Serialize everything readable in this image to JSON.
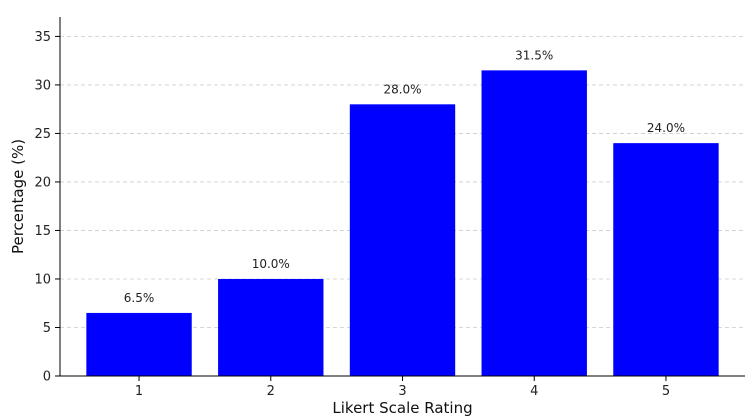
{
  "chart_data": {
    "type": "bar",
    "title": "",
    "xlabel": "Likert Scale Rating",
    "ylabel": "Percentage (%)",
    "categories": [
      "1",
      "2",
      "3",
      "4",
      "5"
    ],
    "values": [
      6.5,
      10.0,
      28.0,
      31.5,
      24.0
    ],
    "data_labels": [
      "6.5%",
      "10.0%",
      "28.0%",
      "31.5%",
      "24.0%"
    ],
    "ylim": [
      0,
      37
    ],
    "yticks": [
      0,
      5,
      10,
      15,
      20,
      25,
      30,
      35
    ],
    "grid": "y-dashed",
    "legend": "none",
    "bar_color": "#0000ff",
    "grid_color": "#cccccc"
  }
}
